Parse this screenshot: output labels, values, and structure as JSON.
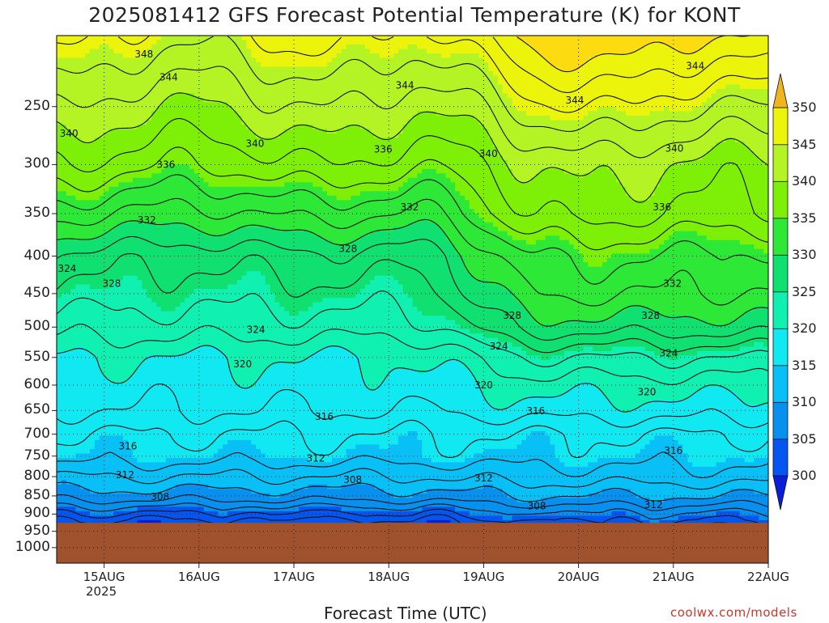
{
  "title": "2025081412 GFS Forecast Potential Temperature (K) for KONT",
  "xlabel": "Forecast Time (UTC)",
  "credit": "coolwx.com/models",
  "colors": {
    "bands": [
      "#0a1ed8",
      "#0555f0",
      "#0890ee",
      "#08c0f6",
      "#10e8f2",
      "#10f0b0",
      "#10e070",
      "#2ee838",
      "#7ef008",
      "#b4f424",
      "#ecf40c",
      "#fcdc10",
      "#f0b41e"
    ],
    "ground": "#a0522d",
    "contour": "#111111"
  },
  "chart_data": {
    "type": "heatmap",
    "title": "2025081412 GFS Forecast Potential Temperature (K) for KONT",
    "xlabel": "Forecast Time (UTC)",
    "ylabel": "",
    "x_ticks": [
      "15AUG",
      "16AUG",
      "17AUG",
      "18AUG",
      "19AUG",
      "20AUG",
      "21AUG",
      "22AUG"
    ],
    "x_year": "2025",
    "x_range_days": [
      14.5,
      22.0
    ],
    "y_ticks": [
      250,
      300,
      350,
      400,
      450,
      500,
      550,
      600,
      650,
      700,
      750,
      800,
      850,
      900,
      950,
      1000
    ],
    "y_range_hpa": [
      200,
      1050
    ],
    "surface_pressure_hpa": 925,
    "colorbar": {
      "labels": [
        300,
        305,
        310,
        315,
        320,
        325,
        330,
        335,
        340,
        345,
        350
      ],
      "extend": "both",
      "unit": "K"
    },
    "contour_interval_K": 2,
    "theta_profile_day1": [
      {
        "p": 250,
        "theta": 341
      },
      {
        "p": 300,
        "theta": 337
      },
      {
        "p": 350,
        "theta": 332
      },
      {
        "p": 400,
        "theta": 327
      },
      {
        "p": 450,
        "theta": 325
      },
      {
        "p": 500,
        "theta": 323
      },
      {
        "p": 550,
        "theta": 320
      },
      {
        "p": 600,
        "theta": 319
      },
      {
        "p": 650,
        "theta": 318
      },
      {
        "p": 700,
        "theta": 316
      },
      {
        "p": 750,
        "theta": 315
      },
      {
        "p": 800,
        "theta": 312
      },
      {
        "p": 850,
        "theta": 309
      },
      {
        "p": 900,
        "theta": 305
      }
    ],
    "theta_profile_day5": [
      {
        "p": 250,
        "theta": 345
      },
      {
        "p": 300,
        "theta": 340
      },
      {
        "p": 350,
        "theta": 338
      },
      {
        "p": 400,
        "theta": 334
      },
      {
        "p": 450,
        "theta": 332
      },
      {
        "p": 500,
        "theta": 329
      },
      {
        "p": 550,
        "theta": 324
      },
      {
        "p": 600,
        "theta": 321
      },
      {
        "p": 650,
        "theta": 319
      },
      {
        "p": 700,
        "theta": 316
      },
      {
        "p": 750,
        "theta": 315
      },
      {
        "p": 800,
        "theta": 313
      },
      {
        "p": 850,
        "theta": 310
      },
      {
        "p": 900,
        "theta": 307
      }
    ],
    "contour_labels": [
      {
        "text": "348",
        "day": 15.42,
        "p": 212
      },
      {
        "text": "344",
        "day": 15.68,
        "p": 228
      },
      {
        "text": "344",
        "day": 18.17,
        "p": 234
      },
      {
        "text": "344",
        "day": 19.96,
        "p": 245
      },
      {
        "text": "344",
        "day": 21.23,
        "p": 220
      },
      {
        "text": "340",
        "day": 14.63,
        "p": 272
      },
      {
        "text": "340",
        "day": 16.59,
        "p": 281
      },
      {
        "text": "340",
        "day": 19.05,
        "p": 290
      },
      {
        "text": "340",
        "day": 21.01,
        "p": 285
      },
      {
        "text": "336",
        "day": 15.65,
        "p": 300
      },
      {
        "text": "336",
        "day": 17.94,
        "p": 286
      },
      {
        "text": "332",
        "day": 15.45,
        "p": 357
      },
      {
        "text": "332",
        "day": 18.22,
        "p": 343
      },
      {
        "text": "336",
        "day": 20.88,
        "p": 343
      },
      {
        "text": "328",
        "day": 17.57,
        "p": 391
      },
      {
        "text": "324",
        "day": 14.61,
        "p": 416
      },
      {
        "text": "328",
        "day": 15.08,
        "p": 436
      },
      {
        "text": "332",
        "day": 20.99,
        "p": 436
      },
      {
        "text": "328",
        "day": 19.3,
        "p": 482
      },
      {
        "text": "328",
        "day": 20.76,
        "p": 482
      },
      {
        "text": "324",
        "day": 16.6,
        "p": 504
      },
      {
        "text": "324",
        "day": 19.16,
        "p": 531
      },
      {
        "text": "324",
        "day": 20.95,
        "p": 543
      },
      {
        "text": "320",
        "day": 16.46,
        "p": 562
      },
      {
        "text": "320",
        "day": 19.0,
        "p": 600
      },
      {
        "text": "320",
        "day": 20.72,
        "p": 613
      },
      {
        "text": "316",
        "day": 17.32,
        "p": 663
      },
      {
        "text": "316",
        "day": 19.55,
        "p": 651
      },
      {
        "text": "316",
        "day": 15.25,
        "p": 727
      },
      {
        "text": "312",
        "day": 17.23,
        "p": 755
      },
      {
        "text": "316",
        "day": 21.0,
        "p": 737
      },
      {
        "text": "312",
        "day": 15.22,
        "p": 796
      },
      {
        "text": "308",
        "day": 17.62,
        "p": 808
      },
      {
        "text": "312",
        "day": 19.0,
        "p": 804
      },
      {
        "text": "308",
        "day": 15.59,
        "p": 852
      },
      {
        "text": "308",
        "day": 19.56,
        "p": 878
      },
      {
        "text": "312",
        "day": 20.79,
        "p": 874
      }
    ]
  }
}
